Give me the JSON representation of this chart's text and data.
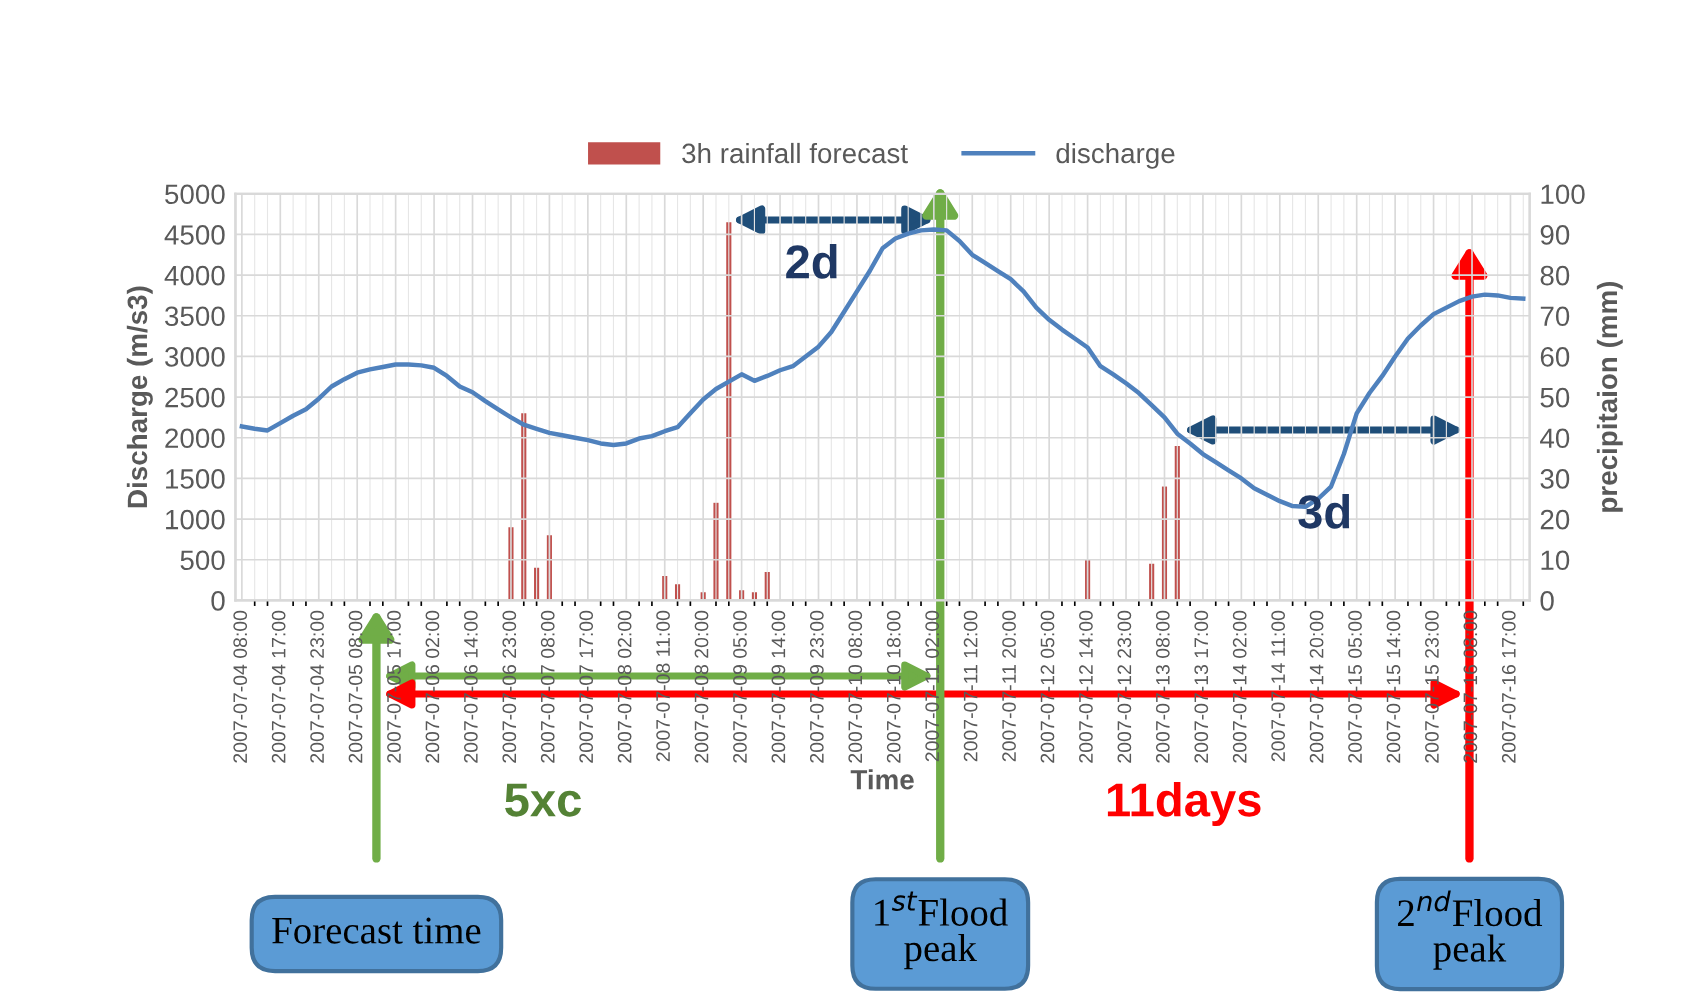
{
  "chart_data": {
    "type": "line",
    "xlabel": "Time",
    "ylabel": "Discharge (m/s3)",
    "y2label": "precipitaion (mm)",
    "categories": [
      "2007-07-04 08:00",
      null,
      null,
      "2007-07-04 17:00",
      null,
      null,
      "2007-07-04 23:00",
      null,
      null,
      "2007-07-05 08:00",
      null,
      null,
      "2007-07-05 17:00",
      null,
      null,
      "2007-07-06 02:00",
      null,
      null,
      "2007-07-06 14:00",
      null,
      null,
      "2007-07-06 23:00",
      null,
      null,
      "2007-07-07 08:00",
      null,
      null,
      "2007-07-07 17:00",
      null,
      null,
      "2007-07-08 02:00",
      null,
      null,
      "2007-07-08 11:00",
      null,
      null,
      "2007-07-08 20:00",
      null,
      null,
      "2007-07-09 05:00",
      null,
      null,
      "2007-07-09 14:00",
      null,
      null,
      "2007-07-09 23:00",
      null,
      null,
      "2007-07-10 08:00",
      null,
      null,
      "2007-07-10 18:00",
      null,
      null,
      "2007-07-11 02:00",
      null,
      null,
      "2007-07-11 12:00",
      null,
      null,
      "2007-07-11 20:00",
      null,
      null,
      "2007-07-12 05:00",
      null,
      null,
      "2007-07-12 14:00",
      null,
      null,
      "2007-07-12 23:00",
      null,
      null,
      "2007-07-13 08:00",
      null,
      null,
      "2007-07-13 17:00",
      null,
      null,
      "2007-07-14 02:00",
      null,
      null,
      "2007-07-14 11:00",
      null,
      null,
      "2007-07-14 20:00",
      null,
      null,
      "2007-07-15 05:00",
      null,
      null,
      "2007-07-15 14:00",
      null,
      null,
      "2007-07-15 23:00",
      null,
      null,
      "2007-07-16 08:00",
      null,
      null,
      "2007-07-16 17:00",
      null
    ],
    "series": [
      {
        "name": "3h rainfall forecast",
        "type": "bar",
        "axis": "y2",
        "color": "#c0504d",
        "values": [
          null,
          null,
          null,
          null,
          null,
          null,
          null,
          null,
          null,
          null,
          null,
          null,
          null,
          null,
          null,
          null,
          null,
          null,
          null,
          null,
          null,
          18,
          46,
          8,
          16,
          null,
          null,
          null,
          null,
          null,
          null,
          null,
          null,
          6,
          4,
          null,
          2,
          24,
          93,
          2.5,
          2,
          7,
          null,
          null,
          null,
          null,
          null,
          null,
          null,
          null,
          null,
          null,
          null,
          null,
          null,
          null,
          null,
          null,
          null,
          null,
          null,
          null,
          null,
          null,
          null,
          null,
          10,
          null,
          null,
          null,
          null,
          9,
          28,
          38,
          null,
          null,
          null,
          null,
          null,
          null,
          null,
          null,
          null,
          null,
          null,
          null,
          null,
          null,
          null,
          null,
          null,
          null,
          null,
          null,
          null,
          null,
          null,
          null,
          null,
          null,
          null
        ]
      },
      {
        "name": "discharge",
        "color": "#4f81bd",
        "values": [
          2140,
          2110,
          2090,
          2180,
          2270,
          2350,
          2480,
          2630,
          2720,
          2800,
          2840,
          2870,
          2900,
          2900,
          2890,
          2860,
          2760,
          2630,
          2560,
          2450,
          2350,
          2250,
          2160,
          2110,
          2060,
          2030,
          2000,
          1970,
          1930,
          1910,
          1930,
          1990,
          2020,
          2080,
          2130,
          2300,
          2470,
          2600,
          2690,
          2780,
          2700,
          2760,
          2830,
          2880,
          3000,
          3120,
          3300,
          3550,
          3800,
          4050,
          4330,
          4450,
          4510,
          4550,
          4560,
          4550,
          4420,
          4250,
          4150,
          4050,
          3950,
          3800,
          3600,
          3450,
          3330,
          3220,
          3110,
          2880,
          2780,
          2670,
          2550,
          2400,
          2250,
          2050,
          1930,
          1800,
          1700,
          1600,
          1500,
          1380,
          1300,
          1220,
          1160,
          1150,
          1250,
          1400,
          1800,
          2300,
          2550,
          2760,
          3000,
          3220,
          3380,
          3520,
          3600,
          3680,
          3735,
          3760,
          3750,
          3720,
          3710
        ]
      }
    ],
    "ylim": [
      0,
      5000
    ],
    "yticks": [
      0,
      500,
      1000,
      1500,
      2000,
      2500,
      3000,
      3500,
      4000,
      4500,
      5000
    ],
    "y2lim": [
      0,
      100
    ],
    "y2ticks": [
      0,
      10,
      20,
      30,
      40,
      50,
      60,
      70,
      80,
      90,
      100
    ],
    "grid": true,
    "legend": "top",
    "annotations": [
      "2d",
      "3d",
      "5xc",
      "11days",
      "Forecast time",
      "1$^{st}$Flood peak",
      "2$^{nd}$Flood peak"
    ]
  }
}
